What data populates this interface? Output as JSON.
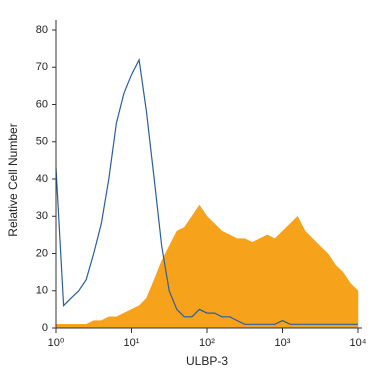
{
  "chart_data": {
    "type": "area",
    "xlabel": "ULBP-3",
    "ylabel": "Relative Cell Number",
    "xscale": "log",
    "x": [
      1,
      1.26,
      1.58,
      2,
      2.51,
      3.16,
      3.98,
      5.01,
      6.31,
      7.94,
      10,
      12.6,
      15.8,
      20,
      25.1,
      31.6,
      39.8,
      50.1,
      63.1,
      79.4,
      100,
      126,
      158,
      200,
      251,
      316,
      398,
      501,
      631,
      794,
      1000,
      1260,
      1580,
      2000,
      2510,
      3160,
      3980,
      5010,
      6310,
      7940,
      10000
    ],
    "series": [
      {
        "color": "#f7a21b",
        "filled": true,
        "values": [
          1,
          1,
          1,
          1,
          1,
          2,
          2,
          3,
          3,
          4,
          5,
          6,
          8,
          13,
          18,
          22,
          26,
          27,
          30,
          33,
          30,
          28,
          26,
          25,
          24,
          24,
          23,
          24,
          25,
          24,
          26,
          28,
          30,
          26,
          24,
          22,
          20,
          17,
          15,
          12,
          10
        ]
      },
      {
        "color": "#2a5f9e",
        "filled": false,
        "values": [
          43,
          6,
          8,
          10,
          13,
          20,
          28,
          40,
          55,
          63,
          68,
          72,
          58,
          40,
          22,
          10,
          5,
          3,
          3,
          5,
          4,
          4,
          3,
          3,
          2,
          1,
          1,
          1,
          1,
          1,
          2,
          1,
          1,
          1,
          1,
          1,
          1,
          1,
          1,
          1,
          1
        ]
      }
    ],
    "xlim": [
      1,
      10000
    ],
    "xticks": [
      {
        "value": 1,
        "label": "10⁰"
      },
      {
        "value": 10,
        "label": "10¹"
      },
      {
        "value": 100,
        "label": "10²"
      },
      {
        "value": 1000,
        "label": "10³"
      },
      {
        "value": 10000,
        "label": "10⁴"
      }
    ],
    "ylim": [
      0,
      80
    ],
    "yticks": [
      0,
      10,
      20,
      30,
      40,
      50,
      60,
      70,
      80
    ]
  }
}
